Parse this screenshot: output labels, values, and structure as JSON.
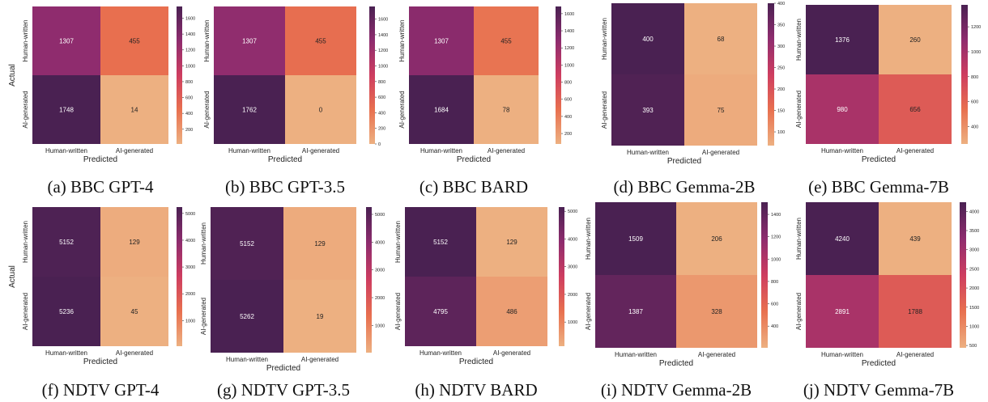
{
  "colors": {
    "colormap": "flare",
    "low": "#EDB081",
    "mid_low": "#E8704F",
    "mid": "#CE3D60",
    "mid_high": "#8E2C6E",
    "high": "#4A2152",
    "cell_text_on_dark": "#ffffff",
    "cell_text_on_light": "#222222"
  },
  "common_labels": {
    "xlabel": "Predicted",
    "ylabel": "Actual",
    "row_labels": [
      "Human-written",
      "AI-generated"
    ],
    "col_labels": [
      "Human-written",
      "AI-generated"
    ]
  },
  "chart_data": [
    {
      "type": "heatmap",
      "caption": "(a) BBC GPT-4",
      "show_ylabel": true,
      "matrix": [
        [
          1307,
          455
        ],
        [
          1748,
          14
        ]
      ],
      "colorbar_ticks": [
        "200",
        "400",
        "600",
        "800",
        "1000",
        "1200",
        "1400",
        "1600"
      ],
      "vmin": 14,
      "vmax": 1748
    },
    {
      "type": "heatmap",
      "caption": "(b) BBC GPT-3.5",
      "show_ylabel": false,
      "matrix": [
        [
          1307,
          455
        ],
        [
          1762,
          0
        ]
      ],
      "colorbar_ticks": [
        "0",
        "200",
        "400",
        "600",
        "800",
        "1000",
        "1200",
        "1400",
        "1600"
      ],
      "vmin": 0,
      "vmax": 1762
    },
    {
      "type": "heatmap",
      "caption": "(c) BBC BARD",
      "show_ylabel": false,
      "matrix": [
        [
          1307,
          455
        ],
        [
          1684,
          78
        ]
      ],
      "colorbar_ticks": [
        "200",
        "400",
        "600",
        "800",
        "1000",
        "1200",
        "1400",
        "1600"
      ],
      "vmin": 78,
      "vmax": 1684
    },
    {
      "type": "heatmap",
      "caption": "(d) BBC Gemma-2B",
      "show_ylabel": false,
      "matrix": [
        [
          400,
          68
        ],
        [
          393,
          75
        ]
      ],
      "colorbar_ticks": [
        "100",
        "150",
        "200",
        "250",
        "300",
        "350",
        "400"
      ],
      "vmin": 68,
      "vmax": 400
    },
    {
      "type": "heatmap",
      "caption": "(e) BBC Gemma-7B",
      "show_ylabel": false,
      "matrix": [
        [
          1376,
          260
        ],
        [
          980,
          656
        ]
      ],
      "colorbar_ticks": [
        "400",
        "600",
        "800",
        "1000",
        "1200"
      ],
      "vmin": 260,
      "vmax": 1376
    },
    {
      "type": "heatmap",
      "caption": "(f) NDTV GPT-4",
      "show_ylabel": true,
      "matrix": [
        [
          5152,
          129
        ],
        [
          5236,
          45
        ]
      ],
      "colorbar_ticks": [
        "1000",
        "2000",
        "3000",
        "4000",
        "5000"
      ],
      "vmin": 45,
      "vmax": 5236
    },
    {
      "type": "heatmap",
      "caption": "(g) NDTV GPT-3.5",
      "show_ylabel": false,
      "matrix": [
        [
          5152,
          129
        ],
        [
          5262,
          19
        ]
      ],
      "colorbar_ticks": [
        "1000",
        "2000",
        "3000",
        "4000",
        "5000"
      ],
      "vmin": 19,
      "vmax": 5262
    },
    {
      "type": "heatmap",
      "caption": "(h) NDTV BARD",
      "show_ylabel": false,
      "matrix": [
        [
          5152,
          129
        ],
        [
          4795,
          486
        ]
      ],
      "colorbar_ticks": [
        "1000",
        "2000",
        "3000",
        "4000",
        "5000"
      ],
      "vmin": 129,
      "vmax": 5152
    },
    {
      "type": "heatmap",
      "caption": "(i) NDTV Gemma-2B",
      "show_ylabel": false,
      "matrix": [
        [
          1509,
          206
        ],
        [
          1387,
          328
        ]
      ],
      "colorbar_ticks": [
        "400",
        "600",
        "800",
        "1000",
        "1200",
        "1400"
      ],
      "vmin": 206,
      "vmax": 1509
    },
    {
      "type": "heatmap",
      "caption": "(j) NDTV Gemma-7B",
      "show_ylabel": false,
      "matrix": [
        [
          4240,
          439
        ],
        [
          2891,
          1788
        ]
      ],
      "colorbar_ticks": [
        "500",
        "1000",
        "1500",
        "2000",
        "2500",
        "3000",
        "3500",
        "4000"
      ],
      "vmin": 439,
      "vmax": 4240
    }
  ]
}
